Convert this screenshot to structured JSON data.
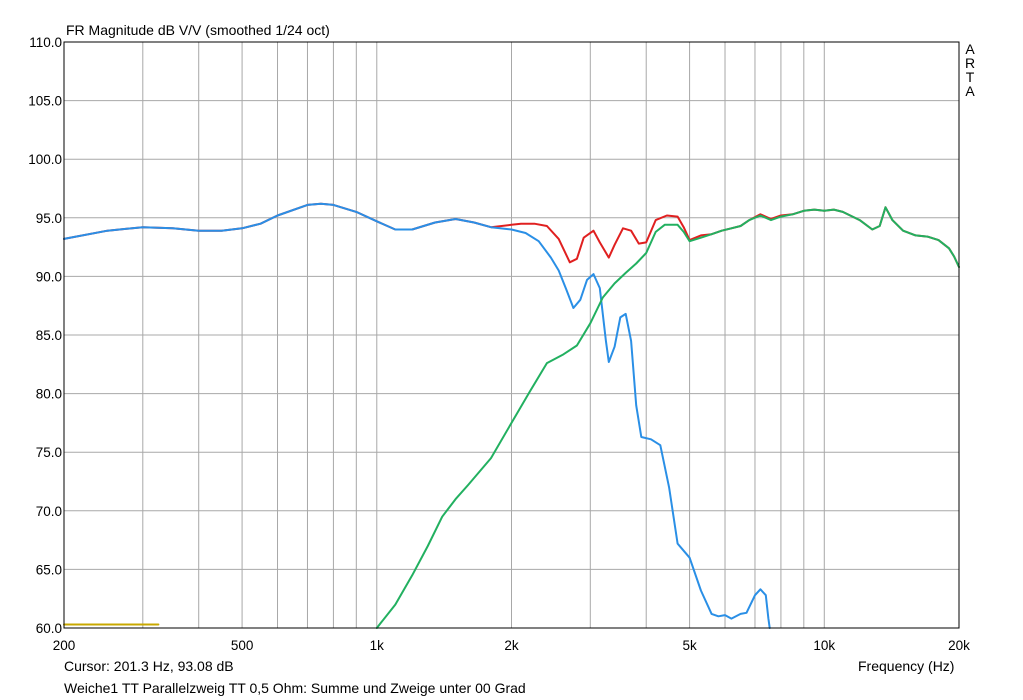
{
  "chart_data": {
    "type": "line",
    "title": "FR Magnitude dB V/V (smoothed 1/24 oct)",
    "xlabel": "Frequency (Hz)",
    "ylabel": "",
    "x_scale": "log",
    "xlim": [
      200,
      20000
    ],
    "ylim": [
      60,
      110
    ],
    "grid": true,
    "x_ticks": [
      {
        "value": 200,
        "label": "200"
      },
      {
        "value": 500,
        "label": "500"
      },
      {
        "value": 1000,
        "label": "1k"
      },
      {
        "value": 2000,
        "label": "2k"
      },
      {
        "value": 5000,
        "label": "5k"
      },
      {
        "value": 10000,
        "label": "10k"
      },
      {
        "value": 20000,
        "label": "20k"
      }
    ],
    "y_ticks": [
      {
        "value": 60,
        "label": "60.0"
      },
      {
        "value": 65,
        "label": "65.0"
      },
      {
        "value": 70,
        "label": "70.0"
      },
      {
        "value": 75,
        "label": "75.0"
      },
      {
        "value": 80,
        "label": "80.0"
      },
      {
        "value": 85,
        "label": "85.0"
      },
      {
        "value": 90,
        "label": "90.0"
      },
      {
        "value": 95,
        "label": "95.0"
      },
      {
        "value": 100,
        "label": "100.0"
      },
      {
        "value": 105,
        "label": "105.0"
      },
      {
        "value": 110,
        "label": "110.0"
      }
    ],
    "series": [
      {
        "color": "#e02020",
        "points": [
          [
            200,
            93.2
          ],
          [
            250,
            93.9
          ],
          [
            300,
            94.2
          ],
          [
            350,
            94.1
          ],
          [
            400,
            93.9
          ],
          [
            450,
            93.9
          ],
          [
            500,
            94.1
          ],
          [
            550,
            94.5
          ],
          [
            600,
            95.2
          ],
          [
            700,
            96.1
          ],
          [
            750,
            96.2
          ],
          [
            800,
            96.1
          ],
          [
            900,
            95.5
          ],
          [
            1000,
            94.7
          ],
          [
            1100,
            94.0
          ],
          [
            1200,
            94.0
          ],
          [
            1350,
            94.6
          ],
          [
            1500,
            94.9
          ],
          [
            1650,
            94.6
          ],
          [
            1800,
            94.2
          ],
          [
            2000,
            94.4
          ],
          [
            2100,
            94.5
          ],
          [
            2250,
            94.5
          ],
          [
            2400,
            94.3
          ],
          [
            2550,
            93.2
          ],
          [
            2700,
            91.2
          ],
          [
            2800,
            91.5
          ],
          [
            2900,
            93.3
          ],
          [
            3050,
            93.9
          ],
          [
            3150,
            92.9
          ],
          [
            3300,
            91.6
          ],
          [
            3400,
            92.7
          ],
          [
            3550,
            94.1
          ],
          [
            3700,
            93.9
          ],
          [
            3850,
            92.8
          ],
          [
            4000,
            92.9
          ],
          [
            4200,
            94.8
          ],
          [
            4450,
            95.2
          ],
          [
            4700,
            95.1
          ],
          [
            4850,
            94.2
          ],
          [
            5000,
            93.1
          ],
          [
            5300,
            93.5
          ],
          [
            5600,
            93.6
          ],
          [
            5900,
            93.9
          ],
          [
            6200,
            94.1
          ],
          [
            6500,
            94.3
          ],
          [
            6800,
            94.8
          ],
          [
            7200,
            95.3
          ],
          [
            7600,
            94.9
          ],
          [
            8000,
            95.2
          ],
          [
            8500,
            95.3
          ],
          [
            9000,
            95.6
          ],
          [
            9500,
            95.7
          ],
          [
            10000,
            95.6
          ],
          [
            10500,
            95.7
          ],
          [
            11000,
            95.5
          ],
          [
            12000,
            94.8
          ],
          [
            12800,
            94.0
          ],
          [
            13300,
            94.3
          ],
          [
            13700,
            95.9
          ],
          [
            14200,
            94.8
          ],
          [
            15000,
            93.9
          ],
          [
            16000,
            93.5
          ],
          [
            17000,
            93.4
          ],
          [
            18000,
            93.1
          ],
          [
            19000,
            92.4
          ],
          [
            19500,
            91.7
          ],
          [
            20000,
            90.8
          ]
        ]
      },
      {
        "color": "#2a8fe6",
        "points": [
          [
            200,
            93.2
          ],
          [
            250,
            93.9
          ],
          [
            300,
            94.2
          ],
          [
            350,
            94.1
          ],
          [
            400,
            93.9
          ],
          [
            450,
            93.9
          ],
          [
            500,
            94.1
          ],
          [
            550,
            94.5
          ],
          [
            600,
            95.2
          ],
          [
            700,
            96.1
          ],
          [
            750,
            96.2
          ],
          [
            800,
            96.1
          ],
          [
            900,
            95.5
          ],
          [
            1000,
            94.7
          ],
          [
            1100,
            94.0
          ],
          [
            1200,
            94.0
          ],
          [
            1350,
            94.6
          ],
          [
            1500,
            94.9
          ],
          [
            1650,
            94.6
          ],
          [
            1800,
            94.2
          ],
          [
            2000,
            94.0
          ],
          [
            2150,
            93.7
          ],
          [
            2300,
            93.0
          ],
          [
            2450,
            91.6
          ],
          [
            2550,
            90.5
          ],
          [
            2650,
            88.9
          ],
          [
            2750,
            87.3
          ],
          [
            2850,
            88.0
          ],
          [
            2950,
            89.7
          ],
          [
            3050,
            90.2
          ],
          [
            3150,
            89.0
          ],
          [
            3250,
            84.5
          ],
          [
            3300,
            82.7
          ],
          [
            3400,
            84.0
          ],
          [
            3500,
            86.5
          ],
          [
            3600,
            86.8
          ],
          [
            3700,
            84.5
          ],
          [
            3800,
            79.0
          ],
          [
            3900,
            76.3
          ],
          [
            4100,
            76.1
          ],
          [
            4300,
            75.6
          ],
          [
            4500,
            72.0
          ],
          [
            4700,
            67.2
          ],
          [
            4800,
            66.8
          ],
          [
            5000,
            66.0
          ],
          [
            5300,
            63.2
          ],
          [
            5600,
            61.2
          ],
          [
            5800,
            61.0
          ],
          [
            6000,
            61.1
          ],
          [
            6200,
            60.8
          ],
          [
            6500,
            61.2
          ],
          [
            6700,
            61.3
          ],
          [
            7000,
            62.8
          ],
          [
            7200,
            63.3
          ],
          [
            7400,
            62.8
          ],
          [
            7500,
            60.8
          ],
          [
            7550,
            60.0
          ]
        ]
      },
      {
        "color": "#22b060",
        "points": [
          [
            1000,
            60.0
          ],
          [
            1100,
            62.0
          ],
          [
            1200,
            64.5
          ],
          [
            1300,
            67.0
          ],
          [
            1400,
            69.5
          ],
          [
            1500,
            71.0
          ],
          [
            1600,
            72.2
          ],
          [
            1800,
            74.5
          ],
          [
            2000,
            77.5
          ],
          [
            2200,
            80.2
          ],
          [
            2400,
            82.6
          ],
          [
            2600,
            83.3
          ],
          [
            2800,
            84.1
          ],
          [
            3000,
            86.0
          ],
          [
            3200,
            88.2
          ],
          [
            3400,
            89.4
          ],
          [
            3600,
            90.3
          ],
          [
            3800,
            91.1
          ],
          [
            4000,
            92.0
          ],
          [
            4200,
            93.8
          ],
          [
            4400,
            94.4
          ],
          [
            4700,
            94.4
          ],
          [
            4850,
            93.8
          ],
          [
            5000,
            93.0
          ],
          [
            5300,
            93.3
          ],
          [
            5600,
            93.6
          ],
          [
            5900,
            93.9
          ],
          [
            6200,
            94.1
          ],
          [
            6500,
            94.3
          ],
          [
            6800,
            94.8
          ],
          [
            7200,
            95.2
          ],
          [
            7600,
            94.8
          ],
          [
            8000,
            95.1
          ],
          [
            8500,
            95.3
          ],
          [
            9000,
            95.6
          ],
          [
            9500,
            95.7
          ],
          [
            10000,
            95.6
          ],
          [
            10500,
            95.7
          ],
          [
            11000,
            95.5
          ],
          [
            12000,
            94.8
          ],
          [
            12800,
            94.0
          ],
          [
            13300,
            94.3
          ],
          [
            13700,
            95.9
          ],
          [
            14200,
            94.8
          ],
          [
            15000,
            93.9
          ],
          [
            16000,
            93.5
          ],
          [
            17000,
            93.4
          ],
          [
            18000,
            93.1
          ],
          [
            19000,
            92.4
          ],
          [
            19500,
            91.7
          ],
          [
            20000,
            90.8
          ]
        ]
      },
      {
        "color": "#c8a800",
        "points": [
          [
            200,
            60.3
          ],
          [
            325,
            60.3
          ]
        ]
      }
    ]
  },
  "cursor_readout": "Cursor: 201.3 Hz, 93.08 dB",
  "caption": "Weiche1 TT Parallelzweig TT 0,5 Ohm: Summe und Zweige unter 00 Grad",
  "brand": "ARTA"
}
